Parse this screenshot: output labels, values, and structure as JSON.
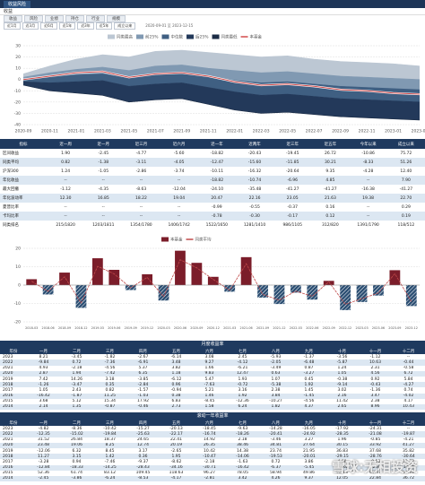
{
  "header": {
    "tab": "收益风险",
    "subtitle": "收益",
    "tabs": [
      "收益",
      "风险",
      "业绩",
      "持仓",
      "行业",
      "规模"
    ],
    "periods": [
      "近1月",
      "近3月",
      "近6月",
      "近1年",
      "近3年",
      "近5年",
      "成立以来"
    ],
    "range": "2020-09-01 至 2023-12-15"
  },
  "chart_data": [
    {
      "type": "band",
      "categories": [
        "2020-09",
        "2020-11",
        "2021-01",
        "2021-03",
        "2021-05",
        "2021-07",
        "2021-09",
        "2021-11",
        "2022-01",
        "2022-03",
        "2022-05",
        "2022-07",
        "2022-09",
        "2022-11",
        "2023-01",
        "2023-03"
      ],
      "ylim": [
        -40,
        30
      ],
      "yticks": [
        -40,
        -30,
        -20,
        -10,
        0,
        10,
        20,
        30
      ],
      "grid": true,
      "bands": [
        {
          "name": "同类最高",
          "color": "#bcc7d3",
          "values": [
            5,
            12,
            18,
            22,
            20,
            25,
            26,
            24,
            22,
            20,
            21,
            18,
            16,
            15,
            14,
            12
          ]
        },
        {
          "name": "前25%",
          "color": "#8099b2",
          "values": [
            2,
            6,
            9,
            11,
            8,
            12,
            13,
            10,
            8,
            6,
            7,
            5,
            3,
            2,
            1,
            0
          ]
        },
        {
          "name": "中位数",
          "color": "#3f5f82",
          "values": [
            0,
            2,
            4,
            5,
            1,
            4,
            5,
            2,
            -1,
            -3,
            -2,
            -4,
            -6,
            -7,
            -8,
            -9
          ]
        },
        {
          "name": "后25%",
          "color": "#23395a",
          "values": [
            -2,
            -3,
            -2,
            -1,
            -6,
            -4,
            -3,
            -7,
            -11,
            -14,
            -13,
            -15,
            -17,
            -18,
            -19,
            -20
          ]
        },
        {
          "name": "同类最低",
          "color": "#1b2c45",
          "values": [
            -5,
            -10,
            -12,
            -14,
            -20,
            -18,
            -17,
            -22,
            -27,
            -30,
            -29,
            -31,
            -33,
            -34,
            -35,
            -36
          ]
        }
      ],
      "series": [
        {
          "name": "本基金",
          "color": "#d24b4b",
          "values": [
            0,
            3,
            6,
            7,
            2,
            5,
            6,
            3,
            -2,
            -5,
            -4,
            -6,
            -9,
            -10,
            -12,
            -13
          ]
        }
      ]
    },
    {
      "type": "bar",
      "categories": [
        "2018-03",
        "2018-06",
        "2018-09",
        "2018-12",
        "2019-03",
        "2019-06",
        "2019-09",
        "2019-12",
        "2020-03",
        "2020-06",
        "2020-09",
        "2020-12",
        "2021-03",
        "2021-06",
        "2021-09",
        "2021-12",
        "2022-03",
        "2022-06",
        "2022-09",
        "2022-12",
        "2023-03",
        "2023-06",
        "2023-09",
        "2023-12"
      ],
      "ylim": [
        -20,
        20
      ],
      "yticks": [
        -20,
        -10,
        0,
        10,
        20
      ],
      "grid": true,
      "series": [
        {
          "name": "本基金",
          "color": "#7b1d2a",
          "negative_color": "#2c4f73",
          "values": [
            3.2,
            -5.1,
            6.8,
            -12.4,
            14.6,
            8.3,
            -2.7,
            5.9,
            -8.4,
            18.7,
            12.1,
            4.5,
            -3.6,
            15.2,
            -6.8,
            -10.3,
            -4.1,
            -7.9,
            2.3,
            -13.6,
            -9.2,
            -5.7,
            8.1,
            -11.4
          ]
        },
        {
          "name": "同类平均",
          "type": "line",
          "color": "#c04a4a",
          "values": [
            2.1,
            -3.4,
            4.5,
            -9.8,
            10.2,
            6.1,
            -1.5,
            4.2,
            -6.3,
            13.8,
            9.4,
            3.1,
            -2.8,
            11.6,
            -5.1,
            -8.2,
            -3.3,
            -6.1,
            1.8,
            -10.5,
            -7.4,
            -4.3,
            6.2,
            -9.0
          ]
        }
      ]
    }
  ],
  "table1": {
    "headers": [
      "指标",
      "近一周",
      "近一月",
      "近三月",
      "近六月",
      "近一年",
      "近两年",
      "近三年",
      "近五年",
      "今年以来",
      "成立以来"
    ],
    "rows": [
      [
        "区间收益",
        "1.90",
        "-2.45",
        "-4.77",
        "-5.60",
        "-18.82",
        "-20.43",
        "-19.45",
        "26.72",
        "-10.86",
        "75.72"
      ],
      [
        "同类平均",
        "0.82",
        "-1.38",
        "-3.11",
        "-4.05",
        "-12.47",
        "-15.60",
        "-11.85",
        "30.21",
        "-8.33",
        "51.26"
      ],
      [
        "沪深300",
        "1.24",
        "-1.05",
        "-2.86",
        "-3.74",
        "-10.11",
        "-16.32",
        "-20.64",
        "9.35",
        "-4.28",
        "12.40"
      ],
      [
        "年化收益",
        "--",
        "--",
        "--",
        "--",
        "-18.82",
        "-10.74",
        "-6.96",
        "4.85",
        "--",
        "7.90"
      ],
      [
        "最大回撤",
        "-1.12",
        "-4.35",
        "-8.63",
        "-12.04",
        "-24.10",
        "-35.48",
        "-41.27",
        "-41.27",
        "-16.38",
        "-41.27"
      ],
      [
        "年化波动率",
        "12.30",
        "16.85",
        "18.22",
        "19.04",
        "20.47",
        "22.16",
        "23.05",
        "21.63",
        "19.38",
        "22.70"
      ],
      [
        "夏普比率",
        "--",
        "--",
        "--",
        "--",
        "-0.99",
        "-0.55",
        "-0.37",
        "0.16",
        "--",
        "0.29"
      ],
      [
        "卡玛比率",
        "--",
        "--",
        "--",
        "--",
        "-0.78",
        "-0.30",
        "-0.17",
        "0.12",
        "--",
        "0.19"
      ],
      [
        "同类排名",
        "215/1820",
        "1203/1811",
        "1354/1780",
        "1406/1742",
        "1522/1650",
        "1281/1410",
        "986/1105",
        "312/820",
        "1391/1790",
        "118/512"
      ]
    ]
  },
  "table2": {
    "title": "月度收益率",
    "headers": [
      "年份",
      "一月",
      "二月",
      "三月",
      "四月",
      "五月",
      "六月",
      "七月",
      "八月",
      "九月",
      "十月",
      "十一月",
      "十二月"
    ],
    "rows": [
      [
        "2023",
        "8.21",
        "-3.45",
        "-1.82",
        "-2.67",
        "-6.14",
        "3.08",
        "2.45",
        "-5.93",
        "-1.37",
        "-3.56",
        "-1.12",
        "--"
      ],
      [
        "2022",
        "-9.84",
        "0.72",
        "-7.36",
        "-6.91",
        "3.48",
        "9.27",
        "-4.12",
        "-2.05",
        "-6.48",
        "-5.87",
        "10.63",
        "-0.44"
      ],
      [
        "2021",
        "4.93",
        "-2.18",
        "-4.56",
        "5.37",
        "3.82",
        "1.66",
        "-6.21",
        "-3.49",
        "0.87",
        "1.24",
        "2.31",
        "-0.58"
      ],
      [
        "2020",
        "2.87",
        "1.94",
        "-7.42",
        "6.35",
        "1.18",
        "9.83",
        "12.47",
        "0.63",
        "-3.27",
        "1.05",
        "4.56",
        "6.72"
      ],
      [
        "2019",
        "7.42",
        "14.26",
        "3.18",
        "-3.85",
        "-6.12",
        "5.47",
        "1.93",
        "1.07",
        "0.45",
        "-0.38",
        "0.92",
        "5.84"
      ],
      [
        "2018",
        "-1.26",
        "-3.47",
        "0.35",
        "-2.84",
        "0.96",
        "-7.63",
        "-0.72",
        "-5.38",
        "1.92",
        "-9.14",
        "-0.43",
        "-4.27"
      ],
      [
        "2017",
        "1.05",
        "2.43",
        "0.82",
        "-1.57",
        "-0.94",
        "5.21",
        "3.16",
        "2.38",
        "1.45",
        "3.02",
        "-1.36",
        "0.74"
      ],
      [
        "2016",
        "-16.42",
        "-1.87",
        "11.25",
        "-1.03",
        "0.38",
        "1.46",
        "1.92",
        "3.84",
        "-1.45",
        "2.16",
        "3.47",
        "-4.02"
      ],
      [
        "2015",
        "3.68",
        "5.12",
        "15.34",
        "17.92",
        "6.83",
        "-8.45",
        "-12.36",
        "-10.27",
        "-4.56",
        "11.42",
        "2.38",
        "4.17"
      ],
      [
        "2014",
        "2.14",
        "1.35",
        "-0.87",
        "-0.46",
        "2.73",
        "1.58",
        "6.24",
        "1.82",
        "4.37",
        "2.65",
        "8.96",
        "10.43"
      ]
    ]
  },
  "table3": {
    "title": "滚动一年收益率",
    "headers": [
      "年份",
      "一月",
      "二月",
      "三月",
      "四月",
      "五月",
      "六月",
      "七月",
      "八月",
      "九月",
      "十月",
      "十一月",
      "十二月"
    ],
    "rows": [
      [
        "2023",
        "-4.82",
        "-8.36",
        "-10.42",
        "-15.27",
        "-20.13",
        "-18.45",
        "-9.63",
        "-14.28",
        "-16.05",
        "-17.92",
        "-24.31",
        "--"
      ],
      [
        "2022",
        "-12.35",
        "-15.02",
        "-19.84",
        "-25.63",
        "-22.17",
        "-16.74",
        "-18.26",
        "-20.41",
        "-24.92",
        "-28.35",
        "-21.08",
        "-19.87"
      ],
      [
        "2021",
        "31.52",
        "26.84",
        "18.37",
        "24.65",
        "22.41",
        "14.92",
        "2.18",
        "-3.46",
        "3.27",
        "1.96",
        "-0.85",
        "-4.21"
      ],
      [
        "2020",
        "23.48",
        "19.06",
        "8.25",
        "12.74",
        "20.19",
        "26.35",
        "38.46",
        "34.81",
        "27.64",
        "30.15",
        "33.92",
        "41.27"
      ],
      [
        "2019",
        "-12.06",
        "6.32",
        "8.45",
        "3.17",
        "-2.65",
        "10.42",
        "14.38",
        "23.74",
        "21.95",
        "36.83",
        "37.68",
        "35.82"
      ],
      [
        "2018",
        "11.27",
        "3.15",
        "1.42",
        "0.36",
        "1.95",
        "-10.47",
        "-14.06",
        "-19.53",
        "-20.01",
        "-29.15",
        "-28.76",
        "-30.64"
      ],
      [
        "2017",
        "-3.28",
        "0.94",
        "-7.46",
        "-9.37",
        "-8.62",
        "-2.18",
        "-1.63",
        "0.72",
        "3.86",
        "4.68",
        "-0.52",
        "12.73"
      ],
      [
        "2016",
        "-12.84",
        "-18.33",
        "-14.25",
        "-28.43",
        "-34.16",
        "-30.71",
        "-16.42",
        "-6.37",
        "-5.45",
        "-13.62",
        "-12.81",
        "-14.08"
      ],
      [
        "2015",
        "52.36",
        "61.74",
        "83.12",
        "109.45",
        "118.63",
        "96.27",
        "78.05",
        "58.94",
        "49.86",
        "62.13",
        "60.47",
        "57.31"
      ],
      [
        "2014",
        "-2.45",
        "-3.86",
        "-6.24",
        "-8.53",
        "-4.17",
        "-2.81",
        "3.42",
        "4.26",
        "9.37",
        "12.05",
        "22.84",
        "36.72"
      ]
    ]
  },
  "watermark": "雪球:无相投资"
}
